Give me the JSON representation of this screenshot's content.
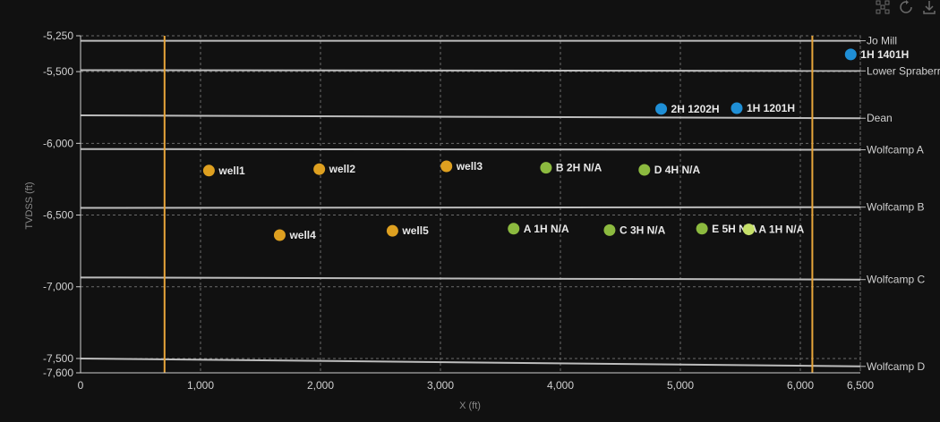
{
  "toolbar": {
    "icons": [
      "select-points-icon",
      "reset-icon",
      "download-icon"
    ]
  },
  "colors": {
    "background": "#111111",
    "grid": "#6a6a6a",
    "axis_text": "#d0d0d0",
    "axis_title": "#8a8a8a",
    "formation_line": "#bdbdbd",
    "boundary_line": "#e7a53a",
    "series_orange": "#dea020",
    "series_green": "#8cba3f",
    "series_blue": "#1f8fd6",
    "series_lightgreen": "#c6e06a"
  },
  "chart_data": {
    "type": "scatter",
    "xlabel": "X (ft)",
    "ylabel": "TVDSS (ft)",
    "xlim": [
      0,
      6500
    ],
    "ylim": [
      -7600,
      -5250
    ],
    "x_ticks": [
      0,
      1000,
      2000,
      3000,
      4000,
      5000,
      6000,
      6500
    ],
    "x_tick_labels": [
      "0",
      "1,000",
      "2,000",
      "3,000",
      "4,000",
      "5,000",
      "6,000",
      "6,500"
    ],
    "y_ticks": [
      -5250,
      -5500,
      -6000,
      -6500,
      -7000,
      -7500,
      -7600
    ],
    "y_tick_labels": [
      "-5,250",
      "-5,500",
      "-6,000",
      "-6,500",
      "-7,000",
      "-7,500",
      "-7,600"
    ],
    "grid": true,
    "vertical_lines": [
      700,
      6100
    ],
    "formations": [
      {
        "name": "Jo Mill",
        "y_start": -5285,
        "y_end": -5285
      },
      {
        "name": "Lower Spraberry",
        "y_start": -5490,
        "y_end": -5495
      },
      {
        "name": "Dean",
        "y_start": -5805,
        "y_end": -5825
      },
      {
        "name": "Wolfcamp A",
        "y_start": -6040,
        "y_end": -6045
      },
      {
        "name": "Wolfcamp B",
        "y_start": -6450,
        "y_end": -6445
      },
      {
        "name": "Wolfcamp C",
        "y_start": -6935,
        "y_end": -6950
      },
      {
        "name": "Wolfcamp D",
        "y_start": -7500,
        "y_end": -7555
      }
    ],
    "series": [
      {
        "color": "#dea020",
        "points": [
          {
            "x": 1070,
            "y": -6190,
            "label": "well1"
          },
          {
            "x": 1990,
            "y": -6180,
            "label": "well2"
          },
          {
            "x": 3050,
            "y": -6160,
            "label": "well3"
          },
          {
            "x": 1660,
            "y": -6640,
            "label": "well4"
          },
          {
            "x": 2600,
            "y": -6610,
            "label": "well5"
          }
        ]
      },
      {
        "color": "#8cba3f",
        "points": [
          {
            "x": 3880,
            "y": -6170,
            "label": "B 2H N/A"
          },
          {
            "x": 4700,
            "y": -6185,
            "label": "D 4H N/A"
          },
          {
            "x": 3610,
            "y": -6595,
            "label": "A 1H N/A"
          },
          {
            "x": 4410,
            "y": -6605,
            "label": "C 3H N/A"
          },
          {
            "x": 5180,
            "y": -6595,
            "label": "E 5H N/A"
          }
        ]
      },
      {
        "color": "#c6e06a",
        "points": [
          {
            "x": 5570,
            "y": -6600,
            "label": "A 1H N/A"
          }
        ]
      },
      {
        "color": "#1f8fd6",
        "points": [
          {
            "x": 6420,
            "y": -5380,
            "label": "1H 1401H"
          },
          {
            "x": 4840,
            "y": -5760,
            "label": "2H 1202H"
          },
          {
            "x": 5470,
            "y": -5755,
            "label": "1H 1201H"
          }
        ]
      }
    ]
  }
}
